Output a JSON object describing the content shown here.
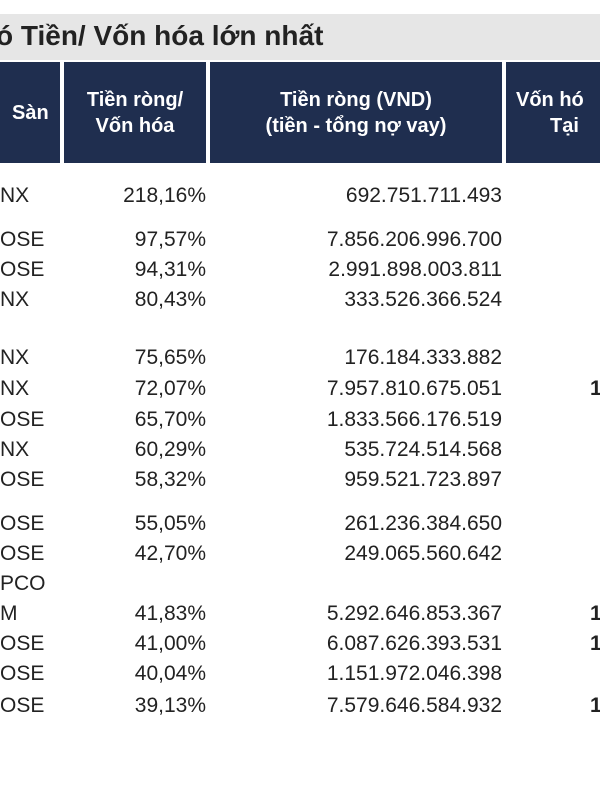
{
  "title": "ó Tiền/ Vốn hóa lớn nhất",
  "headers": {
    "san": "Sàn",
    "pct_line1": "Tiền ròng/",
    "pct_line2": "Vốn hóa",
    "vnd_line1": "Tiền ròng (VND)",
    "vnd_line2": "(tiền - tổng nợ vay)",
    "von_line1": "Vốn hó",
    "von_line2": "Tại"
  },
  "rows": [
    {
      "san": "NX",
      "pct": "218,16%",
      "vnd": "692.751.711.493",
      "extra": ""
    },
    {
      "san": "OSE",
      "pct": "97,57%",
      "vnd": "7.856.206.996.700",
      "extra": ""
    },
    {
      "san": "OSE",
      "pct": "94,31%",
      "vnd": "2.991.898.003.811",
      "extra": ""
    },
    {
      "san": "NX",
      "pct": "80,43%",
      "vnd": "333.526.366.524",
      "extra": ""
    },
    {
      "san": "NX",
      "pct": "75,65%",
      "vnd": "176.184.333.882",
      "extra": ""
    },
    {
      "san": "NX",
      "pct": "72,07%",
      "vnd": "7.957.810.675.051",
      "extra": "1"
    },
    {
      "san": "OSE",
      "pct": "65,70%",
      "vnd": "1.833.566.176.519",
      "extra": ""
    },
    {
      "san": "NX",
      "pct": "60,29%",
      "vnd": "535.724.514.568",
      "extra": ""
    },
    {
      "san": "OSE",
      "pct": "58,32%",
      "vnd": "959.521.723.897",
      "extra": ""
    },
    {
      "san": "OSE",
      "pct": "55,05%",
      "vnd": "261.236.384.650",
      "extra": ""
    },
    {
      "san": "OSE",
      "pct": "42,70%",
      "vnd": "249.065.560.642",
      "extra": ""
    },
    {
      "san": "PCO",
      "pct": "",
      "vnd": "",
      "extra": ""
    },
    {
      "san": "M",
      "pct": "41,83%",
      "vnd": "5.292.646.853.367",
      "extra": "1"
    },
    {
      "san": "OSE",
      "pct": "41,00%",
      "vnd": "6.087.626.393.531",
      "extra": "1"
    },
    {
      "san": "OSE",
      "pct": "40,04%",
      "vnd": "1.151.972.046.398",
      "extra": ""
    },
    {
      "san": "OSE",
      "pct": "39,13%",
      "vnd": "7.579.646.584.932",
      "extra": "1"
    }
  ]
}
